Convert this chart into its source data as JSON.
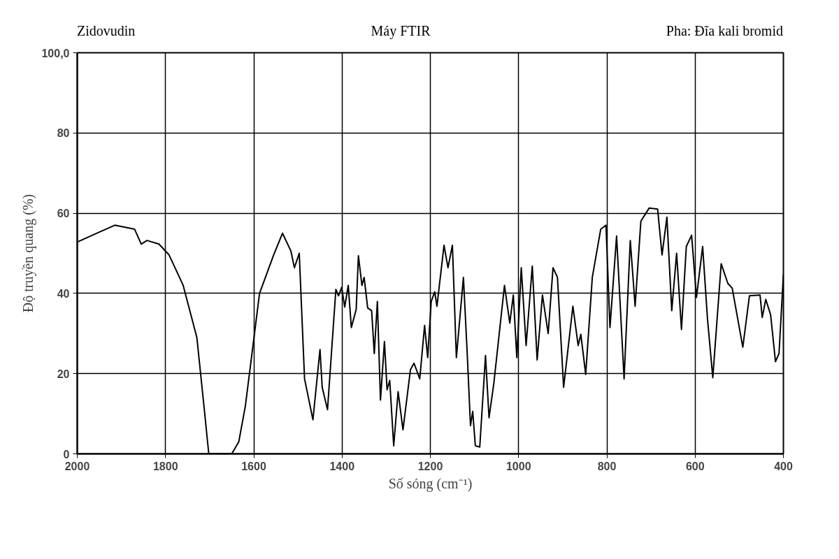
{
  "chart_data": {
    "type": "line",
    "title": "Máy FTIR",
    "annotations": [
      "Zidovudin",
      "Pha: Đĩa kali bromid"
    ],
    "xlabel": "Số sóng (cm⁻¹)",
    "ylabel": "Độ truyền quang (%)",
    "xlim": [
      2000,
      400
    ],
    "ylim": [
      0,
      100
    ],
    "xticks": [
      2000,
      1800,
      1600,
      1400,
      1200,
      1000,
      800,
      600,
      400
    ],
    "yticks": [
      0,
      20,
      40,
      60,
      80,
      {
        "value": 100,
        "label": "100,0"
      }
    ],
    "grid": true,
    "marker": "none",
    "line_style": "solid",
    "series": [
      {
        "color": "#000000",
        "x": [
          2000,
          1950,
          1915,
          1870,
          1855,
          1842,
          1815,
          1792,
          1760,
          1729,
          1713,
          1702,
          1650,
          1634,
          1619,
          1587,
          1555,
          1535,
          1516,
          1508,
          1497,
          1485,
          1466,
          1450,
          1445,
          1433,
          1414,
          1408,
          1401,
          1394,
          1386,
          1379,
          1368,
          1363,
          1355,
          1350,
          1342,
          1333,
          1327,
          1320,
          1313,
          1304,
          1298,
          1292,
          1283,
          1273,
          1262,
          1245,
          1237,
          1224,
          1213,
          1206,
          1198,
          1190,
          1185,
          1169,
          1160,
          1150,
          1141,
          1125,
          1116,
          1109,
          1104,
          1098,
          1088,
          1075,
          1067,
          1056,
          1032,
          1020,
          1012,
          1004,
          994,
          983,
          969,
          958,
          946,
          933,
          922,
          912,
          898,
          877,
          865,
          859,
          848,
          833,
          814,
          802,
          793,
          778,
          761,
          747,
          736,
          723,
          704,
          685,
          675,
          664,
          653,
          642,
          631,
          620,
          608,
          597,
          583,
          572,
          560,
          541,
          526,
          516,
          492,
          477,
          453,
          448,
          440,
          429,
          418,
          410,
          400
        ],
        "values": [
          52.8,
          55.3,
          57,
          56,
          52.3,
          53.2,
          52.3,
          49.6,
          42,
          29,
          12,
          0,
          0,
          3,
          12,
          40,
          49.6,
          55,
          50.6,
          46.4,
          50,
          18.7,
          8.5,
          26,
          16.6,
          11,
          41,
          39.4,
          41.5,
          36.6,
          42,
          31.5,
          36,
          49.4,
          42,
          44,
          36.4,
          35.7,
          25,
          38,
          13.4,
          28,
          16,
          18.3,
          2,
          15.5,
          6,
          21,
          22.6,
          18.7,
          32,
          24,
          38,
          40.4,
          36.8,
          52,
          46.4,
          52,
          24,
          44,
          24,
          7,
          10.6,
          2,
          1.7,
          24.5,
          9,
          17.7,
          42,
          32.6,
          39.6,
          24,
          46.4,
          27,
          46.8,
          23.4,
          39.6,
          30,
          46.4,
          44,
          16.6,
          36.8,
          27,
          29.8,
          19.8,
          44,
          56,
          57,
          31.5,
          54.3,
          18.7,
          53.2,
          36.8,
          58,
          61.3,
          61,
          49.6,
          59,
          35.7,
          50,
          31,
          51.7,
          54.5,
          39,
          51.7,
          33.6,
          19,
          47.4,
          42.5,
          41.3,
          26.6,
          39.4,
          39.6,
          34,
          38.5,
          34.7,
          23,
          25,
          44.7
        ]
      }
    ]
  }
}
